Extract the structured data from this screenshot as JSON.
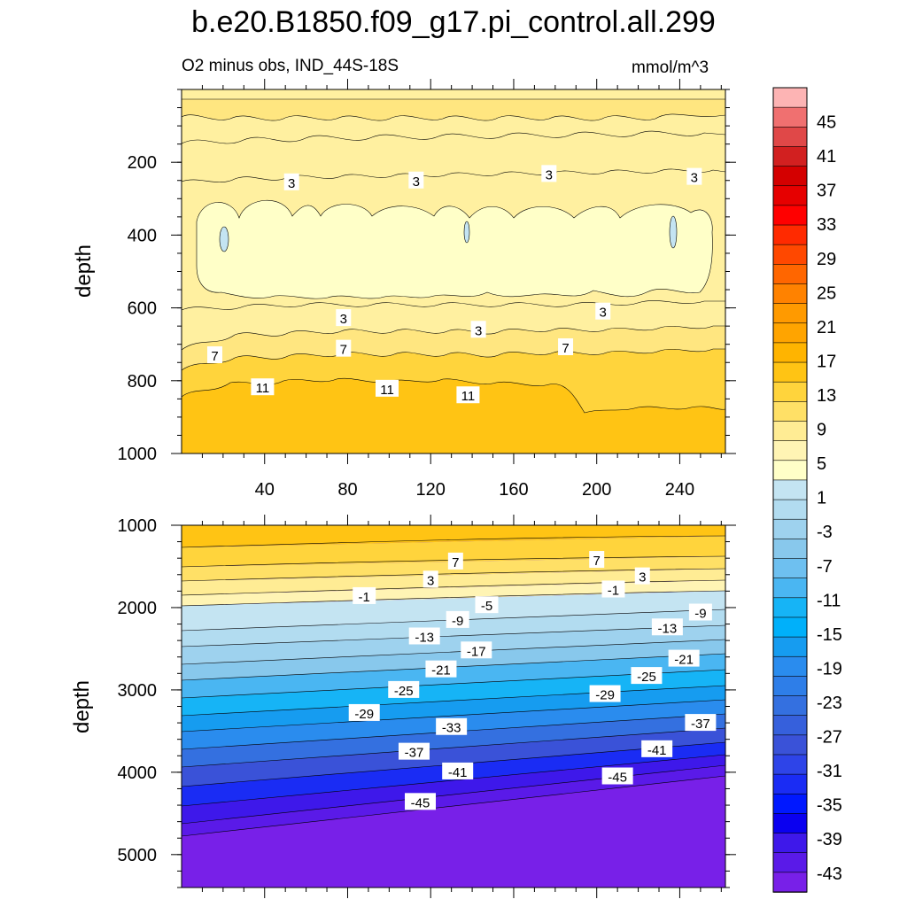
{
  "chart_data": [
    {
      "type": "contour",
      "panel": "upper",
      "title": "b.e20.B1850.f09_g17.pi_control.all.299",
      "subtitle": "O2 minus obs, IND_44S-18S",
      "units": "mmol/m^3",
      "xlabel": "",
      "ylabel": "depth",
      "xlim": [
        0,
        262
      ],
      "ylim": [
        0,
        1000
      ],
      "y_inverted": true,
      "x_ticks": [
        "40",
        "80",
        "120",
        "160",
        "200",
        "240"
      ],
      "y_ticks": [
        "200",
        "400",
        "600",
        "800",
        "1000"
      ],
      "contour_labels": [
        {
          "text": "3",
          "x": 53,
          "y": 255
        },
        {
          "text": "3",
          "x": 113,
          "y": 250
        },
        {
          "text": "3",
          "x": 177,
          "y": 232
        },
        {
          "text": "3",
          "x": 247,
          "y": 240
        },
        {
          "text": "3",
          "x": 78,
          "y": 628
        },
        {
          "text": "3",
          "x": 143,
          "y": 660
        },
        {
          "text": "3",
          "x": 203,
          "y": 610
        },
        {
          "text": "7",
          "x": 16,
          "y": 730
        },
        {
          "text": "7",
          "x": 78,
          "y": 712
        },
        {
          "text": "7",
          "x": 185,
          "y": 708
        },
        {
          "text": "11",
          "x": 39,
          "y": 818
        },
        {
          "text": "11",
          "x": 99,
          "y": 822
        },
        {
          "text": "11",
          "x": 138,
          "y": 840
        }
      ]
    },
    {
      "type": "contour",
      "panel": "lower",
      "xlabel": "",
      "ylabel": "depth",
      "xlim": [
        0,
        262
      ],
      "ylim": [
        1000,
        5400
      ],
      "y_inverted": true,
      "y_ticks": [
        "1000",
        "2000",
        "3000",
        "4000",
        "5000"
      ],
      "contour_labels": [
        {
          "text": "7",
          "x": 132,
          "y": 1440
        },
        {
          "text": "7",
          "x": 200,
          "y": 1420
        },
        {
          "text": "3",
          "x": 120,
          "y": 1660
        },
        {
          "text": "3",
          "x": 222,
          "y": 1620
        },
        {
          "text": "-1",
          "x": 88,
          "y": 1860
        },
        {
          "text": "-1",
          "x": 208,
          "y": 1780
        },
        {
          "text": "-5",
          "x": 147,
          "y": 1970
        },
        {
          "text": "-9",
          "x": 133,
          "y": 2150
        },
        {
          "text": "-9",
          "x": 250,
          "y": 2060
        },
        {
          "text": "-13",
          "x": 117,
          "y": 2350
        },
        {
          "text": "-13",
          "x": 234,
          "y": 2240
        },
        {
          "text": "-17",
          "x": 142,
          "y": 2520
        },
        {
          "text": "-21",
          "x": 125,
          "y": 2750
        },
        {
          "text": "-21",
          "x": 242,
          "y": 2620
        },
        {
          "text": "-25",
          "x": 107,
          "y": 3000
        },
        {
          "text": "-25",
          "x": 224,
          "y": 2830
        },
        {
          "text": "-29",
          "x": 88,
          "y": 3280
        },
        {
          "text": "-29",
          "x": 204,
          "y": 3050
        },
        {
          "text": "-33",
          "x": 130,
          "y": 3450
        },
        {
          "text": "-37",
          "x": 112,
          "y": 3750
        },
        {
          "text": "-37",
          "x": 250,
          "y": 3400
        },
        {
          "text": "-41",
          "x": 133,
          "y": 3990
        },
        {
          "text": "-41",
          "x": 229,
          "y": 3720
        },
        {
          "text": "-45",
          "x": 115,
          "y": 4360
        },
        {
          "text": "-45",
          "x": 210,
          "y": 4050
        }
      ]
    },
    {
      "type": "colorbar",
      "labels": [
        "45",
        "41",
        "37",
        "33",
        "29",
        "25",
        "21",
        "17",
        "13",
        "9",
        "5",
        "1",
        "-3",
        "-7",
        "-11",
        "-15",
        "-19",
        "-23",
        "-27",
        "-31",
        "-35",
        "-39",
        "-43"
      ],
      "colors": [
        "#fdb4b4",
        "#f07070",
        "#e04848",
        "#d22020",
        "#d40000",
        "#e60000",
        "#ff0000",
        "#ff2a00",
        "#ff4800",
        "#ff6600",
        "#ff8200",
        "#ff9a00",
        "#ffa400",
        "#ffb400",
        "#ffc414",
        "#ffd43c",
        "#ffe066",
        "#ffec94",
        "#fff4b4",
        "#ffffc8",
        "#c4e4f2",
        "#b2dcf0",
        "#9ed2ee",
        "#88c8ec",
        "#6ec0f0",
        "#4ab6f2",
        "#16b4f6",
        "#00b0fa",
        "#169cf0",
        "#2a8cee",
        "#2e7ee8",
        "#3470e0",
        "#3660dc",
        "#3a52d8",
        "#2e44e8",
        "#1a2cf4",
        "#0018ff",
        "#0a00f0",
        "#3e18ea",
        "#5a1ae8",
        "#7820e8"
      ]
    }
  ]
}
